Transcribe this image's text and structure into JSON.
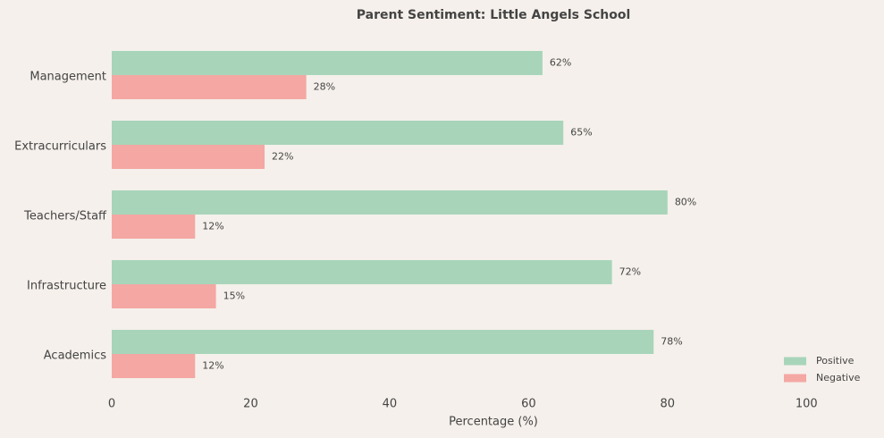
{
  "chart_data": {
    "type": "hbar",
    "title": "Parent Sentiment: Little Angels School",
    "x_label": "Percentage (%)",
    "categories": [
      "Management",
      "Extracurriculars",
      "Teachers/Staff",
      "Infrastructure",
      "Academics"
    ],
    "series": [
      {
        "name": "Positive",
        "color": "#a8d5ba",
        "values": [
          62,
          65,
          80,
          72,
          78
        ],
        "value_labels": [
          "62%",
          "65%",
          "80%",
          "72%",
          "78%"
        ]
      },
      {
        "name": "Negative",
        "color": "#f4a7a3",
        "values": [
          28,
          22,
          12,
          15,
          12
        ],
        "value_labels": [
          "28%",
          "22%",
          "12%",
          "15%",
          "12%"
        ]
      }
    ],
    "xlim": [
      0,
      110
    ],
    "xticks": [
      0,
      20,
      40,
      60,
      80,
      100
    ],
    "grid": false,
    "legend": "lower right"
  }
}
